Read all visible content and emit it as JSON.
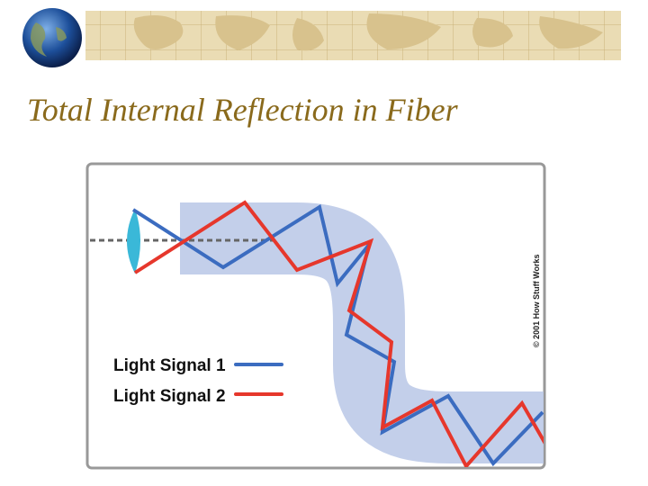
{
  "slide": {
    "title": "Total Internal Reflection in Fiber"
  },
  "diagram": {
    "legend": [
      "Light Signal 1",
      "Light Signal 2"
    ],
    "credit": "© 2001 How Stuff Works"
  }
}
